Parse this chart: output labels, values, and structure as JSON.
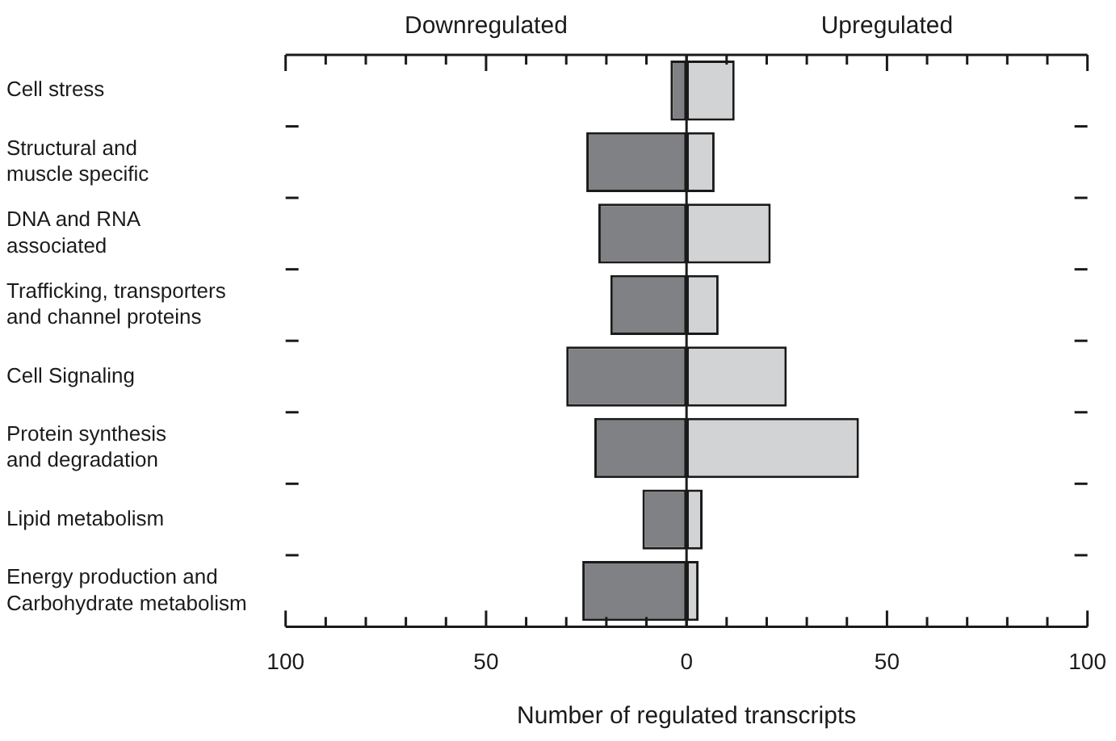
{
  "chart_data": {
    "type": "bar",
    "orientation": "horizontal",
    "stacked": true,
    "xlabel": "Number of regulated transcripts",
    "annotations": [
      "Downregulated",
      "Upregulated"
    ],
    "categories": [
      "Cell stress",
      "Structural and\nmuscle specific",
      "DNA and RNA\nassociated",
      "Trafficking, transporters\nand channel proteins",
      "Cell Signaling",
      "Protein synthesis\nand degradation",
      "Lipid metabolism",
      "Energy production and\nCarbohydrate metabolism"
    ],
    "series": [
      {
        "color": "#808184",
        "values": [
          -4,
          -25,
          -22,
          -19,
          -30,
          -23,
          -11,
          -26
        ]
      },
      {
        "color": "#d2d3d5",
        "values": [
          12,
          7,
          21,
          8,
          25,
          43,
          4,
          3
        ]
      }
    ],
    "xlim": [
      -100,
      100
    ],
    "xticks": [
      {
        "value": -100,
        "label": "100"
      },
      {
        "value": -90,
        "label": null
      },
      {
        "value": -80,
        "label": null
      },
      {
        "value": -70,
        "label": null
      },
      {
        "value": -60,
        "label": null
      },
      {
        "value": -50,
        "label": "50"
      },
      {
        "value": -40,
        "label": null
      },
      {
        "value": -30,
        "label": null
      },
      {
        "value": -20,
        "label": null
      },
      {
        "value": -10,
        "label": null
      },
      0,
      {
        "value": 10,
        "label": null
      },
      {
        "value": 20,
        "label": null
      },
      {
        "value": 30,
        "label": null
      },
      {
        "value": 40,
        "label": null
      },
      {
        "value": 50,
        "label": "50"
      },
      {
        "value": 60,
        "label": null
      },
      {
        "value": 70,
        "label": null
      },
      {
        "value": 80,
        "label": null
      },
      {
        "value": 90,
        "label": null
      },
      {
        "value": 100,
        "label": "100"
      }
    ],
    "legend": false
  }
}
